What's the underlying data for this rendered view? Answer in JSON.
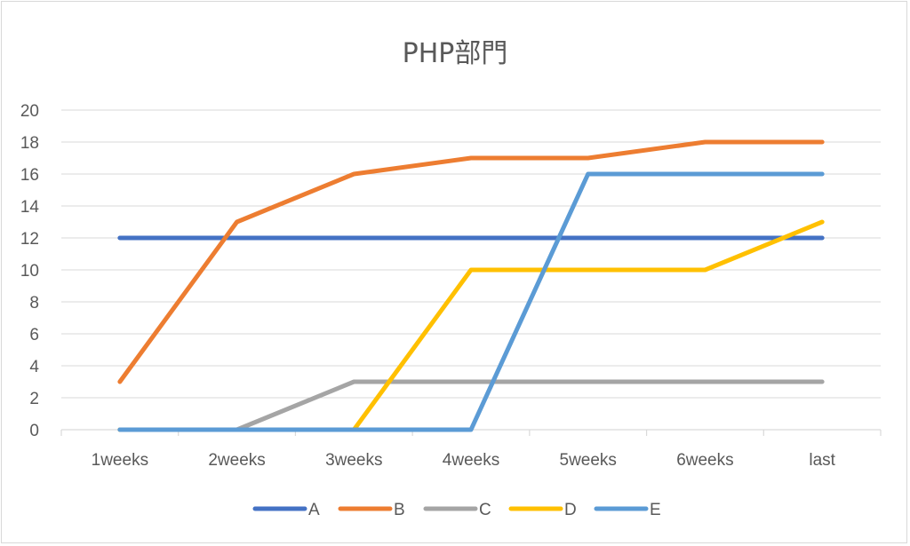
{
  "chart_data": {
    "type": "line",
    "title": "PHP部門",
    "xlabel": "",
    "ylabel": "",
    "categories": [
      "1weeks",
      "2weeks",
      "3weeks",
      "4weeks",
      "5weeks",
      "6weeks",
      "last"
    ],
    "ylim": [
      0,
      20
    ],
    "yticks": [
      0,
      2,
      4,
      6,
      8,
      10,
      12,
      14,
      16,
      18,
      20
    ],
    "grid": true,
    "legend_position": "bottom",
    "series": [
      {
        "name": "A",
        "color": "#4472c4",
        "values": [
          12,
          12,
          12,
          12,
          12,
          12,
          12
        ]
      },
      {
        "name": "B",
        "color": "#ed7d31",
        "values": [
          3,
          13,
          16,
          17,
          17,
          18,
          18
        ]
      },
      {
        "name": "C",
        "color": "#a5a5a5",
        "values": [
          0,
          0,
          3,
          3,
          3,
          3,
          3
        ]
      },
      {
        "name": "D",
        "color": "#ffc000",
        "values": [
          0,
          0,
          0,
          10,
          10,
          10,
          13
        ]
      },
      {
        "name": "E",
        "color": "#5b9bd5",
        "values": [
          0,
          0,
          0,
          0,
          16,
          16,
          16
        ]
      }
    ]
  }
}
